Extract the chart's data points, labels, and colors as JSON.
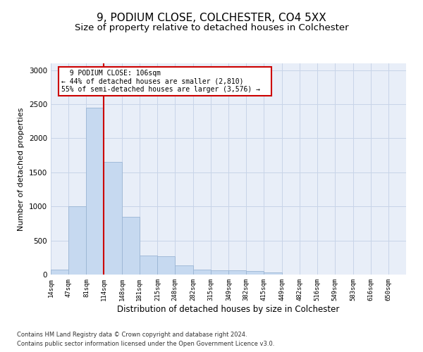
{
  "title": "9, PODIUM CLOSE, COLCHESTER, CO4 5XX",
  "subtitle": "Size of property relative to detached houses in Colchester",
  "xlabel": "Distribution of detached houses by size in Colchester",
  "ylabel": "Number of detached properties",
  "footer_line1": "Contains HM Land Registry data © Crown copyright and database right 2024.",
  "footer_line2": "Contains public sector information licensed under the Open Government Licence v3.0.",
  "annotation_line1": "9 PODIUM CLOSE: 106sqm",
  "annotation_line2": "← 44% of detached houses are smaller (2,810)",
  "annotation_line3": "55% of semi-detached houses are larger (3,576) →",
  "bar_edges": [
    14,
    47,
    81,
    114,
    148,
    181,
    215,
    248,
    282,
    315,
    349,
    382,
    415,
    449,
    482,
    516,
    549,
    583,
    616,
    650,
    683
  ],
  "bar_values": [
    75,
    1000,
    2450,
    1650,
    850,
    280,
    270,
    130,
    75,
    60,
    60,
    55,
    30,
    5,
    5,
    5,
    0,
    0,
    0,
    0
  ],
  "bar_color": "#c6d9f0",
  "bar_edge_color": "#9ab5d4",
  "vline_x": 114,
  "vline_color": "#cc0000",
  "ylim": [
    0,
    3100
  ],
  "yticks": [
    0,
    500,
    1000,
    1500,
    2000,
    2500,
    3000
  ],
  "grid_color": "#c8d4e8",
  "background_color": "#e8eef8",
  "title_fontsize": 11,
  "subtitle_fontsize": 9.5,
  "xlabel_fontsize": 8.5,
  "ylabel_fontsize": 8
}
